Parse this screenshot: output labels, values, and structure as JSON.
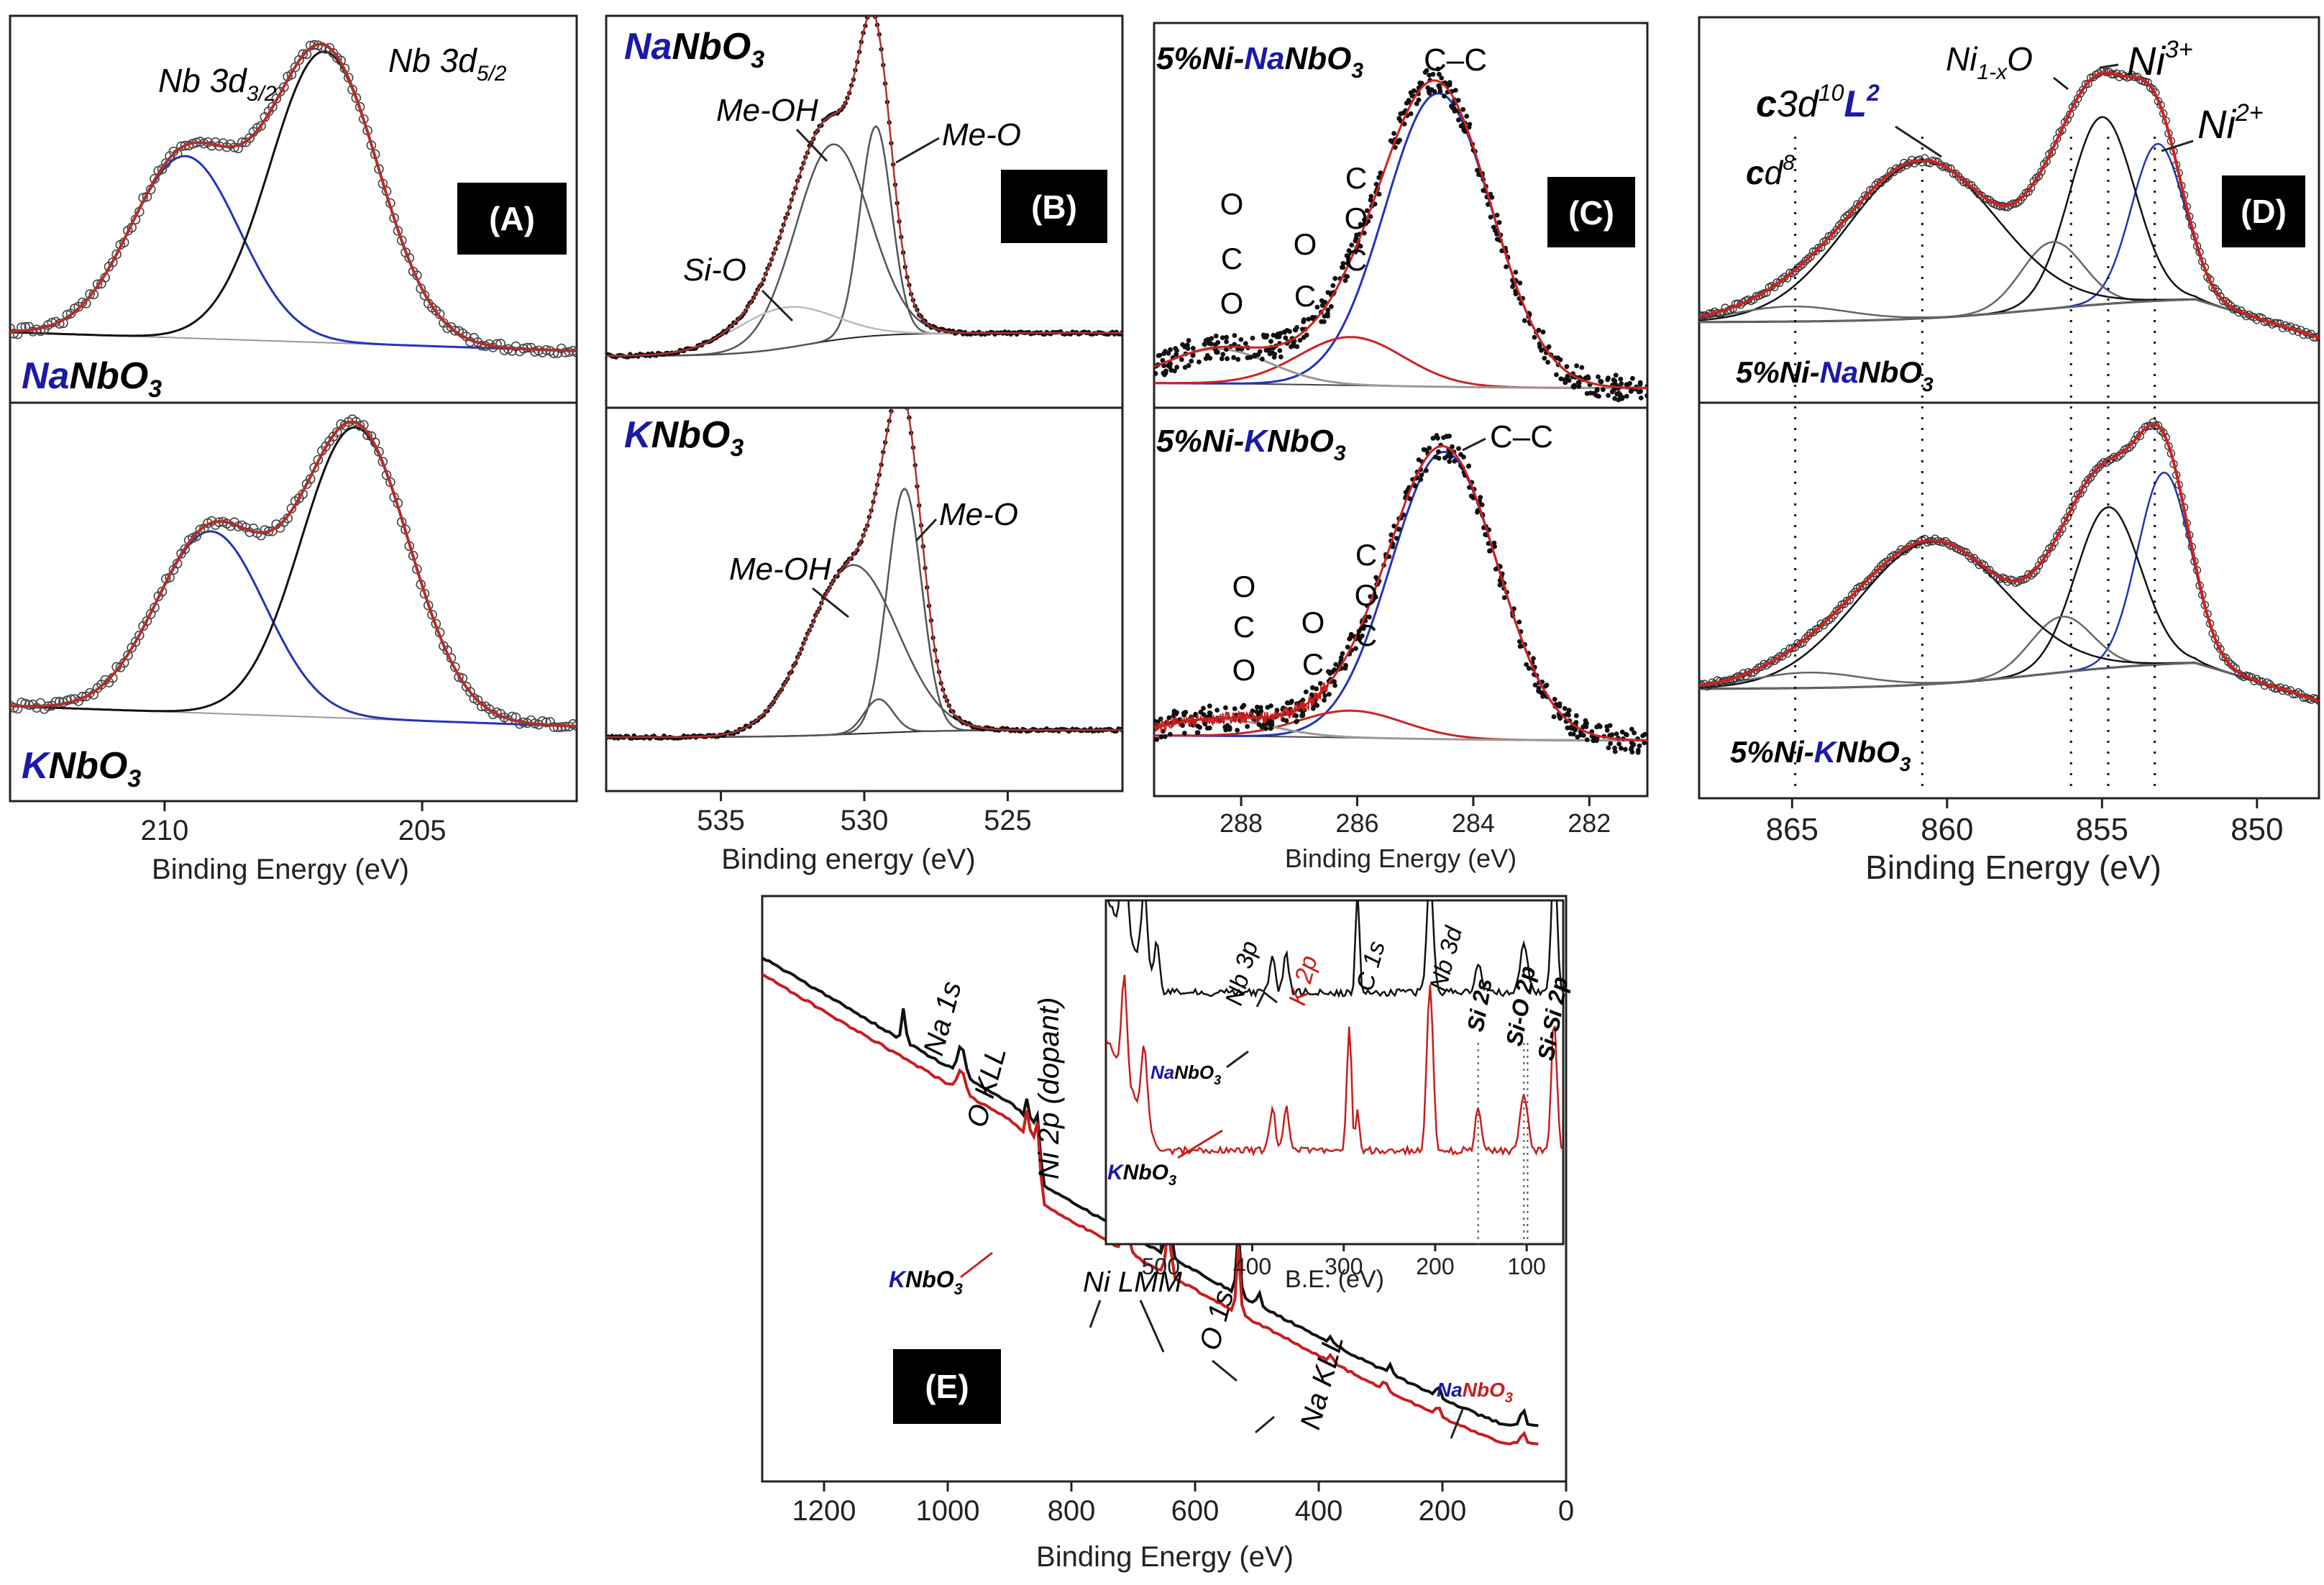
{
  "figure": "XPS spectra of NaNbO3, KNbO3, 5%Ni-NaNbO3 and 5%Ni-KNbO3",
  "colors": {
    "fit_blue": "#2233bb",
    "fit_red": "#cc2222",
    "data_black": "#111111",
    "envelope": "#8b2a2a",
    "bg_gray": "#999999",
    "na_blue": "#1a1aa6",
    "k_red": "#c81e1e"
  },
  "chart_data": [
    {
      "id": "A",
      "type": "line",
      "badge": "(A)",
      "xlabel": "Binding Energy (eV)",
      "xlim": [
        213,
        202
      ],
      "xticks": [
        210,
        205
      ],
      "panels": [
        {
          "sample": {
            "prefix": "Na",
            "rest": "NbO",
            "sub": "3"
          },
          "peaks": [
            {
              "label": "Nb 3d",
              "sub": "3/2",
              "center": 209.6,
              "height": 0.55,
              "color": "blue"
            },
            {
              "label": "Nb 3d",
              "sub": "5/2",
              "center": 206.9,
              "height": 0.88,
              "color": "black"
            }
          ]
        },
        {
          "sample": {
            "prefix": "K",
            "rest": "NbO",
            "sub": "3"
          },
          "peaks": [
            {
              "center": 209.1,
              "height": 0.55,
              "color": "blue"
            },
            {
              "center": 206.3,
              "height": 0.88,
              "color": "black"
            }
          ]
        }
      ]
    },
    {
      "id": "B",
      "type": "line",
      "badge": "(B)",
      "xlabel": "Binding energy (eV)",
      "xlim": [
        539,
        521
      ],
      "xticks": [
        535,
        530,
        525
      ],
      "panels": [
        {
          "sample": {
            "prefix": "Na",
            "rest": "NbO",
            "sub": "3"
          },
          "annotations": [
            "Me-OH",
            "Me-O",
            "Si-O"
          ],
          "peaks": [
            {
              "label": "Me-OH",
              "center": 531.1,
              "height": 0.58
            },
            {
              "label": "Me-O",
              "center": 529.6,
              "height": 0.62
            },
            {
              "label": "Si-O",
              "center": 532.8,
              "height": 0.12
            }
          ]
        },
        {
          "sample": {
            "prefix": "K",
            "rest": "NbO",
            "sub": "3"
          },
          "annotations": [
            "Me-OH",
            "Me-O"
          ],
          "peaks": [
            {
              "label": "Me-OH",
              "center": 530.4,
              "height": 0.5
            },
            {
              "label": "Me-O",
              "center": 528.6,
              "height": 0.72
            },
            {
              "center": 529.5,
              "height": 0.1
            }
          ]
        }
      ]
    },
    {
      "id": "C",
      "type": "scatter",
      "badge": "(C)",
      "xlabel": "Binding Energy (eV)",
      "xlim": [
        289.5,
        281
      ],
      "xticks": [
        288,
        286,
        284,
        282
      ],
      "panels": [
        {
          "sample": {
            "pre": "5%Ni-",
            "prefix": "Na",
            "rest": "NbO",
            "sub": "3"
          },
          "annotations": {
            "cc": "C–C",
            "oco": [
              "O",
              "C",
              "O"
            ],
            "co": [
              "O",
              "C"
            ],
            "coc": [
              "C",
              "O",
              "C"
            ]
          },
          "peaks": [
            {
              "label": "C-C",
              "center": 284.6,
              "height": 0.85,
              "color": "blue"
            },
            {
              "center": 286.1,
              "height": 0.14,
              "color": "red"
            },
            {
              "center": 288.4,
              "height": 0.1,
              "color": "gray"
            }
          ]
        },
        {
          "sample": {
            "pre": "5%Ni-",
            "prefix": "K",
            "rest": "NbO",
            "sub": "3"
          },
          "annotations": {
            "cc": "C–C",
            "oco": [
              "O",
              "C",
              "O"
            ],
            "co": [
              "O",
              "C"
            ],
            "coc": [
              "C",
              "O",
              "C"
            ]
          },
          "peaks": [
            {
              "label": "C-C",
              "center": 284.5,
              "height": 0.85,
              "color": "blue"
            },
            {
              "center": 286.1,
              "height": 0.08,
              "color": "red"
            },
            {
              "center": 288.4,
              "height": 0.05,
              "color": "gray"
            }
          ]
        }
      ]
    },
    {
      "id": "D",
      "type": "line",
      "badge": "(D)",
      "xlabel": "Binding Energy (eV)",
      "xlim": [
        868,
        848
      ],
      "xticks": [
        865,
        860,
        855,
        850
      ],
      "dotted_lines": [
        864.9,
        860.8,
        856.0,
        854.8,
        853.3
      ],
      "labels": {
        "cd8": {
          "c": "c",
          "d": "d",
          "sup": "8"
        },
        "c3d10": {
          "c": "c",
          "d": "3d",
          "sup": "10",
          "L": "L",
          "sup2": "2"
        },
        "ni1x": {
          "main": "Ni",
          "sub": "1-x",
          "tail": "O"
        },
        "ni3": {
          "main": "Ni",
          "sup": "3+"
        },
        "ni2": {
          "main": "Ni",
          "sup": "2+"
        }
      },
      "panels": [
        {
          "sample": {
            "pre": "5%Ni-",
            "prefix": "Na",
            "rest": "NbO",
            "sub": "3"
          },
          "peaks": [
            {
              "center": 853.2,
              "height": 0.52,
              "color": "blue"
            },
            {
              "center": 855.0,
              "height": 0.62
            },
            {
              "center": 856.6,
              "height": 0.22
            },
            {
              "center": 860.8,
              "height": 0.52
            },
            {
              "center": 865.0,
              "height": 0.05
            }
          ]
        },
        {
          "sample": {
            "pre": "5%Ni-",
            "prefix": "K",
            "rest": "NbO",
            "sub": "3"
          },
          "peaks": [
            {
              "center": 853.0,
              "height": 0.62,
              "color": "blue"
            },
            {
              "center": 854.8,
              "height": 0.52
            },
            {
              "center": 856.3,
              "height": 0.18
            },
            {
              "center": 860.5,
              "height": 0.46
            },
            {
              "center": 864.5,
              "height": 0.05
            }
          ]
        }
      ]
    },
    {
      "id": "E",
      "type": "line",
      "badge": "(E)",
      "xlabel": "Binding Energy (eV)",
      "xlim": [
        1300,
        0
      ],
      "xticks": [
        1200,
        1000,
        800,
        600,
        400,
        200,
        0
      ],
      "series": [
        {
          "name": "NaNbO3",
          "color": "black"
        },
        {
          "name": "KNbO3",
          "color": "red"
        }
      ],
      "annotations": [
        "Na 1s",
        "O KLL",
        "Ni 2p (dopant)",
        "Ni LMM",
        "O 1s",
        "Na KLL"
      ],
      "legend": {
        "na": {
          "prefix": "Na",
          "rest": "NbO",
          "sub": "3"
        },
        "k": {
          "prefix": "K",
          "rest": "NbO",
          "sub": "3"
        }
      },
      "peaks": [
        {
          "label": "Na 1s",
          "x": 1071
        },
        {
          "label": "O KLL",
          "x": 978
        },
        {
          "label": "Ni 2p (dopant)",
          "x": 855
        },
        {
          "label": "Ni LMM",
          "x": 712
        },
        {
          "label": "Ni LMM",
          "x": 643
        },
        {
          "label": "O 1s",
          "x": 530
        },
        {
          "label": "Na KLL",
          "x": 497
        }
      ],
      "inset": {
        "xlabel": "B.E. (eV)",
        "xlim": [
          560,
          60
        ],
        "xticks": [
          500,
          400,
          300,
          200,
          100
        ],
        "annotations": [
          "Nb 3p",
          "K 2p",
          "C 1s",
          "Nb 3d",
          "Si 2s",
          "Si-O 2p",
          "Si-Si 2p"
        ],
        "labels": {
          "na": {
            "prefix": "Na",
            "rest": "NbO",
            "sub": "3"
          },
          "k": {
            "prefix": "K",
            "rest": "NbO",
            "sub": "3"
          }
        },
        "peaks": [
          {
            "label": "Nb 3p",
            "x": 378
          },
          {
            "label": "Nb 3p",
            "x": 363
          },
          {
            "label": "K 2p",
            "x": 293
          },
          {
            "label": "C 1s",
            "x": 285
          },
          {
            "label": "Nb 3d",
            "x": 207
          },
          {
            "label": "Si 2s",
            "x": 153
          },
          {
            "label": "Si-O 2p",
            "x": 103
          },
          {
            "label": "Si-Si 2p",
            "x": 99
          }
        ]
      }
    }
  ]
}
